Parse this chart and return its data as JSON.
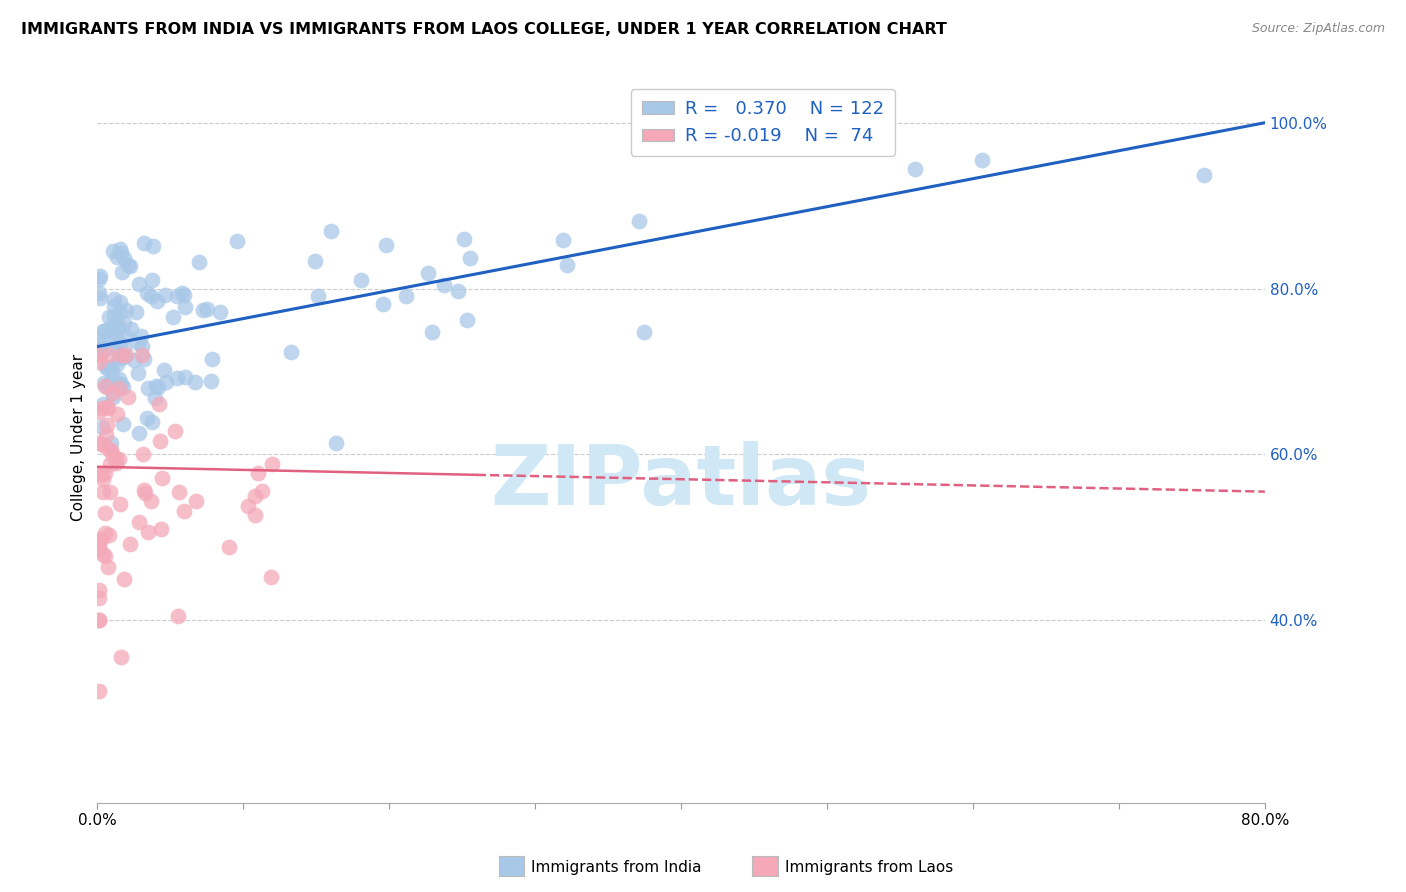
{
  "title": "IMMIGRANTS FROM INDIA VS IMMIGRANTS FROM LAOS COLLEGE, UNDER 1 YEAR CORRELATION CHART",
  "source": "Source: ZipAtlas.com",
  "ylabel": "College, Under 1 year",
  "right_yticks_labels": [
    "100.0%",
    "80.0%",
    "60.0%",
    "40.0%"
  ],
  "right_ytick_vals": [
    1.0,
    0.8,
    0.6,
    0.4
  ],
  "legend_india_R": "0.370",
  "legend_india_N": "122",
  "legend_laos_R": "-0.019",
  "legend_laos_N": "74",
  "india_color": "#A8C8E8",
  "laos_color": "#F4A8B8",
  "india_line_color": "#2060C0",
  "laos_line_color": "#E06080",
  "watermark_color": "#D0E8F5",
  "background_color": "#FFFFFF",
  "india_line_x0": 0.0,
  "india_line_x1": 0.8,
  "india_line_y0": 0.73,
  "india_line_y1": 1.0,
  "laos_line_x0": 0.0,
  "laos_line_x1": 0.8,
  "laos_line_y0": 0.585,
  "laos_line_y1": 0.555,
  "xmin": 0.0,
  "xmax": 0.8,
  "ymin": 0.18,
  "ymax": 1.06,
  "grid_color": "#CCCCCC",
  "grid_style": "--",
  "bottom_legend_india": "Immigrants from India",
  "bottom_legend_laos": "Immigrants from Laos"
}
